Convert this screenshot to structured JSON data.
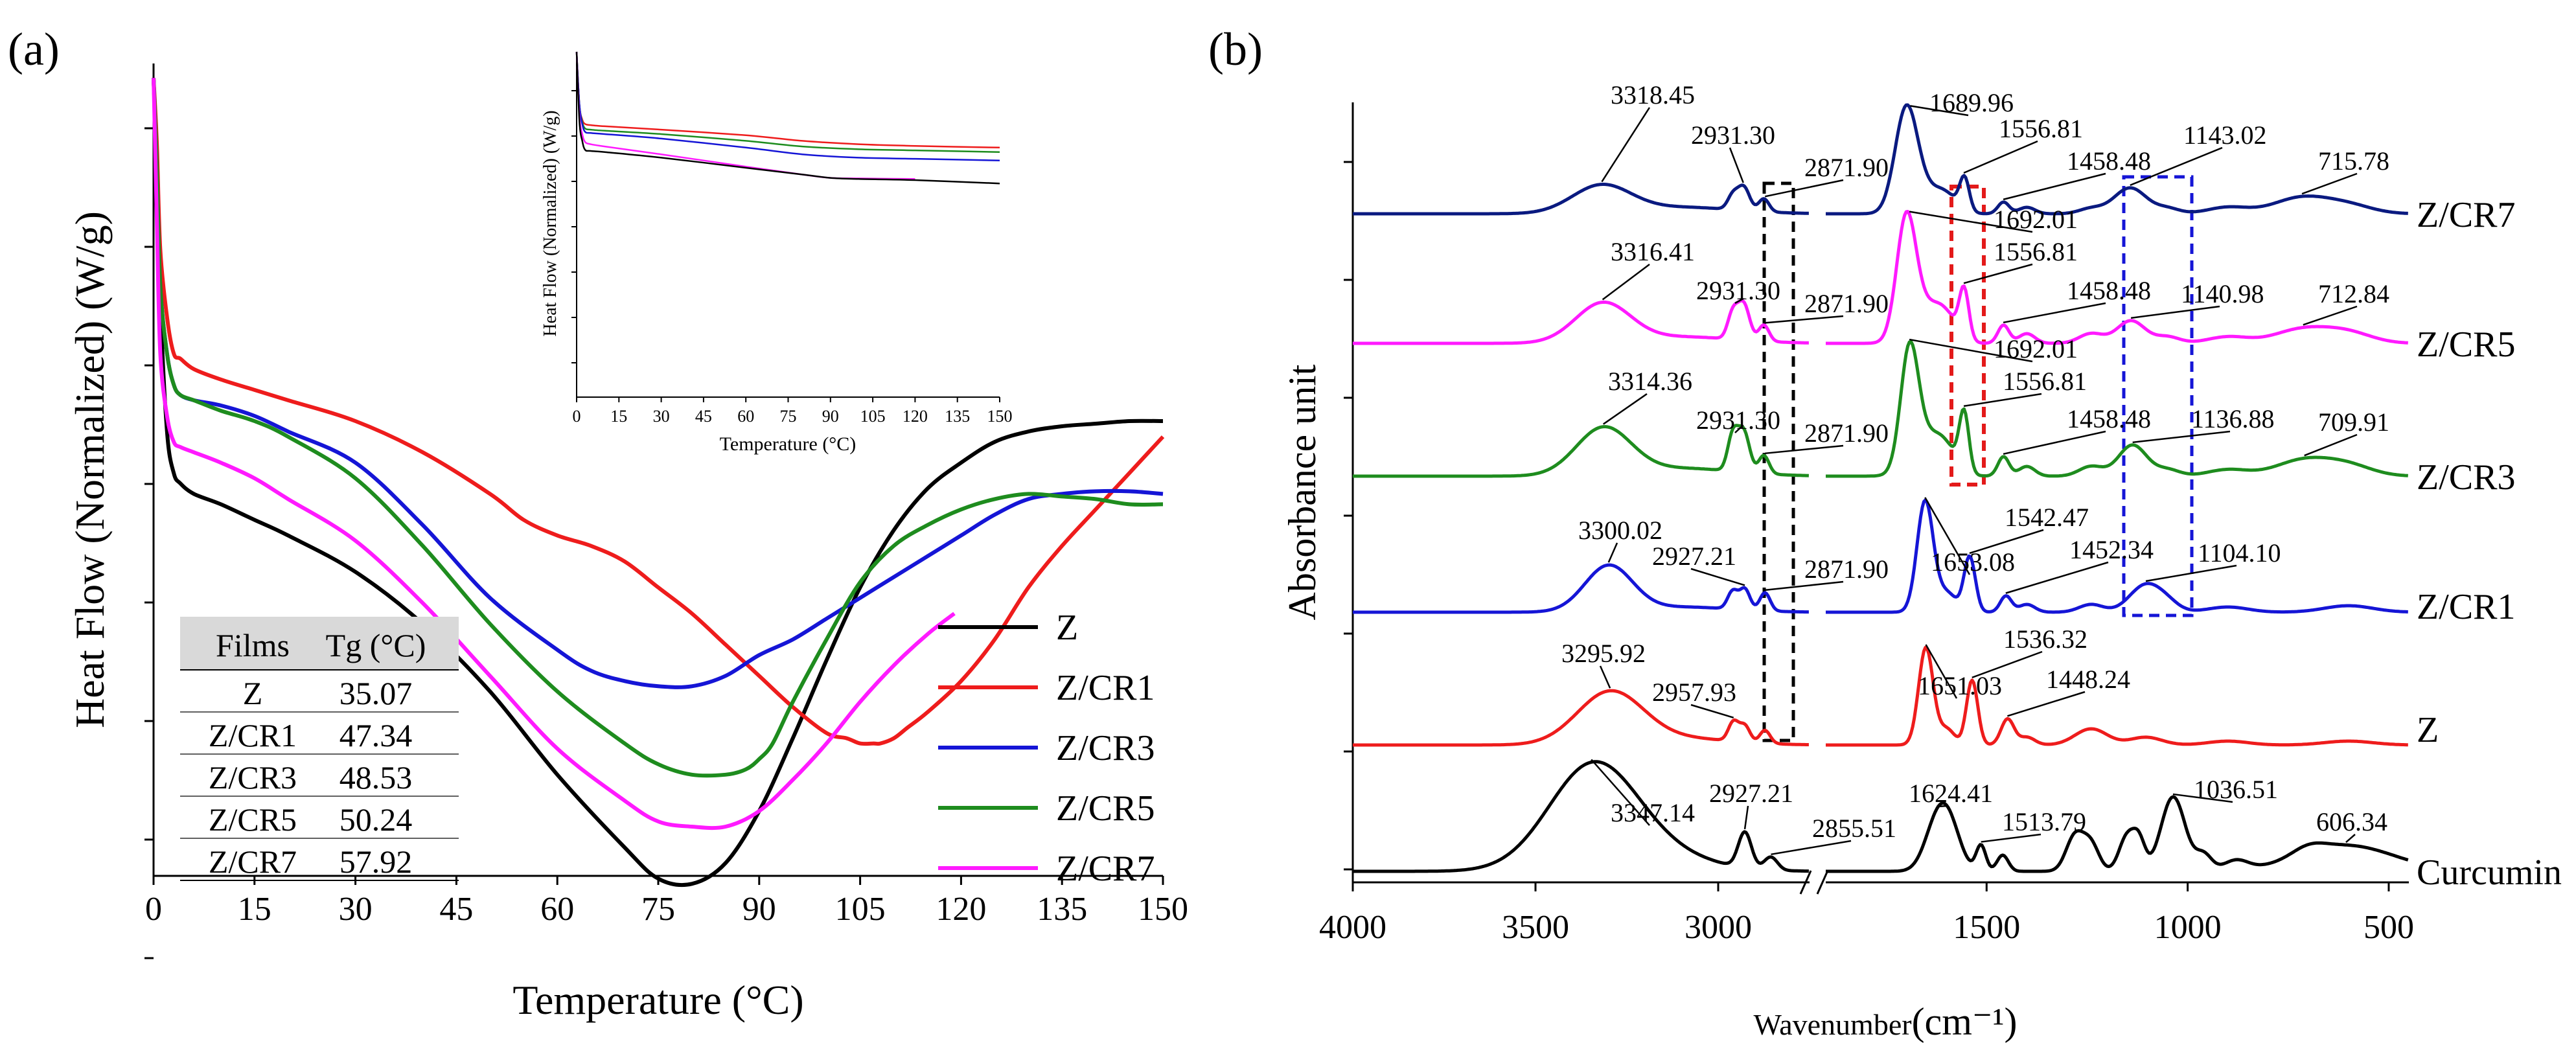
{
  "chart_data": [
    {
      "panel_label": "(a)",
      "type": "line",
      "title": "",
      "xlabel": "Temperature (°C)",
      "ylabel": "Heat Flow (Normalized) (W/g)",
      "xlim": [
        0,
        150
      ],
      "xticks": [
        "0",
        "15",
        "30",
        "45",
        "60",
        "75",
        "90",
        "105",
        "120",
        "135",
        "150"
      ],
      "legend": "bottom-right",
      "series": [
        {
          "name": "Z",
          "color": "#000000",
          "x": [
            0,
            0.5,
            1,
            2,
            3,
            4,
            6,
            10,
            15,
            20,
            30,
            40,
            50,
            60,
            70,
            75,
            80,
            85,
            90,
            95,
            100,
            105,
            110,
            115,
            120,
            125,
            130,
            135,
            140,
            145,
            150
          ],
          "y": [
            0.02,
            0.2,
            0.45,
            0.7,
            0.78,
            0.8,
            0.82,
            0.84,
            0.87,
            0.9,
            0.97,
            1.07,
            1.2,
            1.36,
            1.5,
            1.56,
            1.57,
            1.53,
            1.43,
            1.29,
            1.14,
            1.0,
            0.89,
            0.81,
            0.76,
            0.72,
            0.7,
            0.69,
            0.685,
            0.68,
            0.68
          ]
        },
        {
          "name": "Z/CR1",
          "color": "#ee1c1c",
          "x": [
            0,
            0.5,
            1,
            2,
            3,
            4,
            6,
            10,
            15,
            20,
            30,
            40,
            50,
            55,
            60,
            65,
            70,
            75,
            80,
            85,
            90,
            95,
            100,
            103,
            105,
            107,
            108,
            110,
            112,
            115,
            120,
            125,
            130,
            135,
            140,
            145,
            150
          ],
          "y": [
            0.02,
            0.15,
            0.35,
            0.48,
            0.55,
            0.56,
            0.58,
            0.6,
            0.62,
            0.64,
            0.68,
            0.74,
            0.82,
            0.87,
            0.9,
            0.92,
            0.95,
            1.0,
            1.05,
            1.11,
            1.17,
            1.23,
            1.28,
            1.29,
            1.3,
            1.3,
            1.3,
            1.29,
            1.27,
            1.24,
            1.18,
            1.1,
            1.0,
            0.92,
            0.85,
            0.78,
            0.71
          ]
        },
        {
          "name": "Z/CR3",
          "color": "#1515d6",
          "x": [
            0,
            0.5,
            1,
            2,
            3,
            4,
            6,
            10,
            15,
            20,
            30,
            40,
            50,
            60,
            65,
            70,
            75,
            80,
            85,
            90,
            95,
            100,
            105,
            110,
            115,
            120,
            125,
            130,
            135,
            140,
            145,
            150
          ],
          "y": [
            0.02,
            0.2,
            0.42,
            0.55,
            0.61,
            0.63,
            0.64,
            0.65,
            0.67,
            0.7,
            0.76,
            0.88,
            1.02,
            1.12,
            1.16,
            1.18,
            1.19,
            1.19,
            1.17,
            1.13,
            1.1,
            1.06,
            1.02,
            0.98,
            0.94,
            0.9,
            0.86,
            0.83,
            0.82,
            0.815,
            0.815,
            0.82
          ]
        },
        {
          "name": "Z/CR5",
          "color": "#1e8c1e",
          "x": [
            0,
            0.5,
            1,
            2,
            3,
            4,
            6,
            10,
            15,
            20,
            30,
            40,
            50,
            60,
            70,
            75,
            80,
            85,
            88,
            90,
            92,
            95,
            100,
            105,
            110,
            115,
            120,
            125,
            130,
            135,
            140,
            145,
            150
          ],
          "y": [
            0.02,
            0.2,
            0.42,
            0.55,
            0.61,
            0.63,
            0.64,
            0.66,
            0.68,
            0.71,
            0.79,
            0.92,
            1.07,
            1.2,
            1.3,
            1.34,
            1.36,
            1.36,
            1.35,
            1.33,
            1.3,
            1.22,
            1.1,
            0.99,
            0.92,
            0.88,
            0.85,
            0.83,
            0.82,
            0.825,
            0.83,
            0.84,
            0.84
          ]
        },
        {
          "name": "Z/CR7",
          "color": "#ff1aff",
          "x": [
            0,
            0.5,
            1,
            2,
            3,
            4,
            6,
            10,
            15,
            20,
            30,
            40,
            50,
            60,
            70,
            75,
            80,
            85,
            90,
            95,
            100,
            105,
            110,
            115,
            119
          ],
          "y": [
            0.02,
            0.3,
            0.55,
            0.67,
            0.72,
            0.73,
            0.74,
            0.76,
            0.79,
            0.83,
            0.91,
            1.03,
            1.17,
            1.31,
            1.41,
            1.45,
            1.46,
            1.46,
            1.43,
            1.37,
            1.3,
            1.22,
            1.15,
            1.09,
            1.05
          ]
        }
      ],
      "table": {
        "headers": [
          "Films",
          "Tg (°C)"
        ],
        "rows": [
          [
            "Z",
            "35.07"
          ],
          [
            "Z/CR1",
            "47.34"
          ],
          [
            "Z/CR3",
            "48.53"
          ],
          [
            "Z/CR5",
            "50.24"
          ],
          [
            "Z/CR7",
            "57.92"
          ]
        ]
      },
      "inset": {
        "xlabel": "Temperature (°C)",
        "ylabel": "Heat Flow (Normalized) (W/g)",
        "xlim": [
          0,
          150
        ],
        "xticks": [
          "0",
          "15",
          "30",
          "45",
          "60",
          "75",
          "90",
          "105",
          "120",
          "135",
          "150"
        ],
        "series": [
          {
            "name": "Z/CR1",
            "color": "#ee1c1c",
            "x": [
              0,
              1,
              2,
              3,
              5,
              10,
              30,
              60,
              80,
              100,
              120,
              150
            ],
            "y": [
              0,
              0.3,
              0.43,
              0.47,
              0.48,
              0.49,
              0.52,
              0.57,
              0.62,
              0.65,
              0.665,
              0.68
            ]
          },
          {
            "name": "Z/CR5",
            "color": "#1e8c1e",
            "x": [
              0,
              1,
              2,
              3,
              5,
              10,
              30,
              60,
              80,
              100,
              120,
              150
            ],
            "y": [
              0,
              0.3,
              0.45,
              0.51,
              0.52,
              0.53,
              0.56,
              0.62,
              0.67,
              0.695,
              0.705,
              0.72
            ]
          },
          {
            "name": "Z/CR3",
            "color": "#1515d6",
            "x": [
              0,
              1,
              2,
              3,
              5,
              10,
              30,
              60,
              80,
              100,
              120,
              150
            ],
            "y": [
              0,
              0.3,
              0.47,
              0.54,
              0.55,
              0.56,
              0.6,
              0.68,
              0.74,
              0.77,
              0.78,
              0.795
            ]
          },
          {
            "name": "Z/CR7",
            "color": "#ff1aff",
            "x": [
              0,
              1,
              2,
              3,
              5,
              10,
              30,
              60,
              80,
              90,
              100,
              120
            ],
            "y": [
              0,
              0.4,
              0.56,
              0.63,
              0.65,
              0.67,
              0.74,
              0.85,
              0.92,
              0.95,
              0.955,
              0.96
            ]
          },
          {
            "name": "Z",
            "color": "#000000",
            "x": [
              0,
              1,
              2,
              3,
              5,
              10,
              30,
              60,
              80,
              90,
              100,
              120,
              150
            ],
            "y": [
              0,
              0.45,
              0.62,
              0.7,
              0.71,
              0.72,
              0.77,
              0.86,
              0.92,
              0.95,
              0.96,
              0.97,
              1.0
            ]
          }
        ]
      }
    },
    {
      "panel_label": "(b)",
      "type": "line",
      "title": "",
      "xlabel": "Wavenumber",
      "xlabel_unit": "(cm⁻¹)",
      "ylabel": "Absorbance unit",
      "xlim": [
        4000,
        450
      ],
      "xticks": [
        "4000",
        "3500",
        "3000",
        "1500",
        "1000",
        "500"
      ],
      "axis_break": [
        2750,
        1900
      ],
      "series": [
        {
          "name": "Z/CR7",
          "color": "#0a1a80",
          "label": "Z/CR7"
        },
        {
          "name": "Z/CR5",
          "color": "#ff1aff",
          "label": "Z/CR5"
        },
        {
          "name": "Z/CR3",
          "color": "#1e8c1e",
          "label": "Z/CR3"
        },
        {
          "name": "Z/CR1",
          "color": "#1515d6",
          "label": "Z/CR1"
        },
        {
          "name": "Z",
          "color": "#ee1c1c",
          "label": "Z"
        },
        {
          "name": "Curcumin",
          "color": "#000000",
          "label": "Curcumin"
        }
      ],
      "peak_labels": {
        "Z/CR7": [
          "3318.45",
          "2931.30",
          "2871.90",
          "1689.96",
          "1556.81",
          "1458.48",
          "1143.02",
          "715.78"
        ],
        "Z/CR5": [
          "3316.41",
          "2931.30",
          "2871.90",
          "1692.01",
          "1556.81",
          "1458.48",
          "1140.98",
          "712.84"
        ],
        "Z/CR3": [
          "3314.36",
          "2931.30",
          "2871.90",
          "1692.01",
          "1556.81",
          "1458.48",
          "1136.88",
          "709.91"
        ],
        "Z/CR1": [
          "3300.02",
          "2927.21",
          "2871.90",
          "1653.08",
          "1542.47",
          "1452.34",
          "1104.10"
        ],
        "Z": [
          "3295.92",
          "2957.93",
          "1651.03",
          "1536.32",
          "1448.24"
        ],
        "Curcumin": [
          "3347.14",
          "2927.21",
          "2855.51",
          "1624.41",
          "1513.79",
          "1036.51",
          "606.34"
        ]
      }
    }
  ]
}
